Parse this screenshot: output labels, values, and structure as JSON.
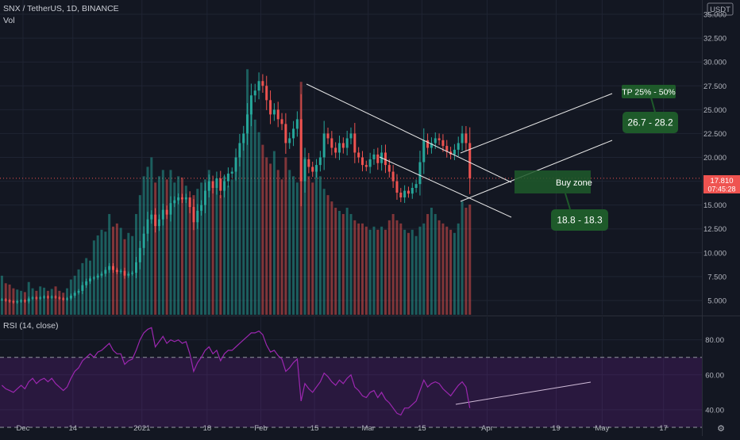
{
  "header": {
    "symbol_line": "SNX / TetherUS, 1D, BINANCE",
    "volume_label": "Vol",
    "rsi_label": "RSI (14, close)"
  },
  "currency_badge": "USDT",
  "last_price": {
    "value": "17.810",
    "countdown": "07:45:28"
  },
  "annotations": {
    "tp_label": "TP 25% - 50%",
    "target_range": "26.7 - 28.2",
    "buy_zone": "Buy zone",
    "buy_range": "18.8 - 18.3"
  },
  "colors": {
    "background": "#131722",
    "bull": "#26a69a",
    "bear": "#ef5350",
    "rsi_line": "#9c27b0",
    "label_box": "#1e5a2a"
  },
  "chart_data": [
    {
      "type": "candlestick",
      "symbol": "SNX / TetherUS",
      "interval": "1D",
      "exchange": "BINANCE",
      "ylim": [
        3.5,
        36.5
      ],
      "yticks": [
        5.0,
        7.5,
        10.0,
        12.5,
        15.0,
        17.5,
        20.0,
        22.5,
        25.0,
        27.5,
        30.0,
        32.5,
        35.0
      ],
      "ytick_labels": [
        "5.000",
        "7.500",
        "10.000",
        "12.500",
        "15.000",
        "17.500",
        "20.000",
        "22.500",
        "25.000",
        "27.500",
        "30.000",
        "32.500",
        "35.000"
      ],
      "x_labels": [
        "Dec",
        "14",
        "2021",
        "18",
        "Feb",
        "15",
        "Mar",
        "15",
        "Apr",
        "19",
        "May",
        "17"
      ],
      "x_start": "2020-11-25",
      "x_end": "2021-05-27",
      "grid": true,
      "last_price": 17.81,
      "close": [
        5.1,
        5.0,
        4.9,
        4.8,
        4.9,
        5.0,
        4.9,
        5.2,
        5.3,
        5.2,
        5.3,
        5.4,
        5.3,
        5.4,
        5.3,
        5.2,
        5.1,
        5.2,
        5.5,
        5.8,
        6.0,
        6.6,
        7.0,
        7.3,
        7.4,
        7.6,
        7.8,
        8.2,
        8.6,
        8.2,
        8.0,
        8.1,
        7.6,
        7.8,
        7.9,
        9.0,
        10.5,
        12.0,
        13.5,
        14.0,
        12.8,
        13.5,
        14.5,
        14.0,
        15.2,
        15.5,
        15.8,
        15.6,
        15.8,
        14.8,
        13.2,
        14.4,
        15.0,
        16.5,
        17.5,
        16.8,
        17.8,
        16.5,
        17.5,
        18.3,
        18.5,
        20.0,
        21.5,
        22.5,
        24.5,
        26.5,
        27.0,
        28.0,
        27.5,
        26.0,
        24.5,
        25.0,
        24.0,
        23.5,
        21.5,
        22.0,
        23.0,
        24.0,
        17.5,
        19.8,
        19.0,
        18.5,
        19.2,
        20.0,
        22.5,
        22.0,
        21.0,
        20.5,
        21.5,
        21.0,
        22.0,
        22.5,
        20.5,
        20.0,
        19.2,
        19.0,
        19.8,
        20.3,
        19.4,
        20.5,
        19.2,
        18.5,
        17.5,
        16.3,
        15.8,
        16.5,
        16.2,
        16.8,
        17.2,
        19.5,
        21.8,
        21.0,
        21.5,
        22.0,
        21.8,
        21.2,
        20.6,
        20.3,
        20.8,
        21.5,
        22.5,
        21.5,
        17.8
      ],
      "volume_ylim": [
        0,
        5000
      ],
      "volume": [
        620,
        500,
        480,
        420,
        400,
        380,
        360,
        520,
        420,
        380,
        450,
        430,
        380,
        410,
        450,
        380,
        350,
        420,
        560,
        620,
        720,
        820,
        900,
        860,
        1180,
        1260,
        1350,
        1320,
        1600,
        1400,
        1450,
        1380,
        1200,
        1300,
        1250,
        1600,
        1900,
        2200,
        2350,
        2500,
        2100,
        2200,
        2300,
        2150,
        2300,
        2100,
        2200,
        2180,
        2050,
        1800,
        1900,
        2000,
        2100,
        2150,
        2300,
        2050,
        2100,
        1900,
        2200,
        2050,
        2150,
        2400,
        2600,
        2800,
        3900,
        3400,
        3100,
        2900,
        2700,
        2500,
        2400,
        2600,
        2300,
        2150,
        2500,
        2300,
        2200,
        2100,
        3700,
        2500,
        2200,
        2100,
        2300,
        2200,
        2000,
        1900,
        1800,
        1700,
        1650,
        1600,
        1700,
        1600,
        1500,
        1450,
        1450,
        1400,
        1350,
        1400,
        1350,
        1400,
        1350,
        1500,
        1600,
        1500,
        1450,
        1350,
        1300,
        1350,
        1250,
        1400,
        1450,
        1600,
        1700,
        1600,
        1500,
        1450,
        1400,
        1350,
        1300,
        1450,
        1800,
        1700,
        1750
      ]
    },
    {
      "type": "line",
      "name": "RSI (14, close)",
      "ylim": [
        25,
        93
      ],
      "yticks": [
        40,
        60,
        80
      ],
      "ytick_labels": [
        "40.00",
        "60.00",
        "80.00"
      ],
      "bands": [
        30,
        70
      ],
      "values": [
        54,
        52,
        51,
        50,
        52,
        54,
        52,
        56,
        58,
        55,
        57,
        58,
        56,
        58,
        55,
        53,
        51,
        53,
        58,
        62,
        64,
        68,
        70,
        72,
        70,
        73,
        74,
        76,
        78,
        74,
        72,
        72,
        66,
        68,
        69,
        74,
        80,
        84,
        86,
        87,
        76,
        79,
        82,
        78,
        80,
        79,
        80,
        78,
        79,
        72,
        62,
        67,
        70,
        74,
        76,
        72,
        74,
        68,
        72,
        74,
        74,
        76,
        78,
        80,
        82,
        84,
        84,
        85,
        83,
        77,
        73,
        74,
        71,
        69,
        62,
        64,
        67,
        69,
        45,
        55,
        52,
        50,
        53,
        56,
        61,
        59,
        56,
        54,
        57,
        55,
        58,
        60,
        53,
        51,
        48,
        47,
        50,
        51,
        47,
        50,
        46,
        44,
        41,
        38,
        37,
        41,
        41,
        43,
        45,
        51,
        57,
        53,
        55,
        56,
        55,
        52,
        50,
        48,
        51,
        54,
        56,
        53,
        41
      ]
    }
  ]
}
